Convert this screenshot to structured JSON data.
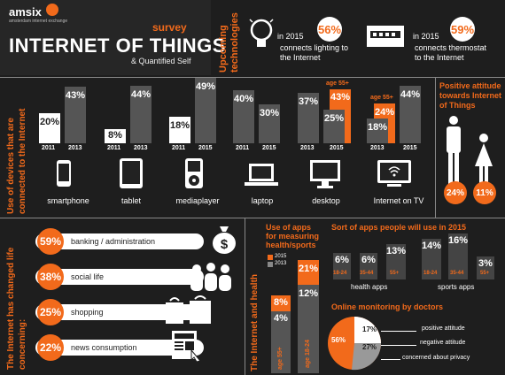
{
  "header": {
    "logo": "amsix",
    "logo_sub": "amsterdam internet exchange",
    "survey": "survey",
    "title": "INTERNET OF THINGS",
    "subtitle": "& Quantified Self"
  },
  "upcoming": {
    "label": "Upcoming technologies",
    "items": [
      {
        "year": "in 2015",
        "pct": "56%",
        "text": "connects lighting to the Internet",
        "icon": "lightbulb-icon"
      },
      {
        "year": "in 2015",
        "pct": "59%",
        "text": "connects thermostat to the Internet",
        "icon": "thermostat-icon"
      }
    ]
  },
  "devices": {
    "label": "Use of devices that are connected to the Internet",
    "age_note": "age 55+",
    "items": [
      {
        "name": "smartphone",
        "y2011": "20%",
        "y2013": "43%"
      },
      {
        "name": "tablet",
        "y2011": "8%",
        "y2013": "44%"
      },
      {
        "name": "mediaplayer",
        "y2011": "18%",
        "y2015": "49%"
      },
      {
        "name": "laptop",
        "y2011": "40%",
        "y2015": "30%"
      },
      {
        "name": "desktop",
        "y2013": "37%",
        "y2015": "25%",
        "y2015_55": "43%"
      },
      {
        "name": "Internet on TV",
        "y2013": "18%",
        "y2013_55": "24%",
        "y2015": "44%"
      }
    ],
    "years": {
      "a": "2011",
      "b": "2013",
      "c": "2015"
    }
  },
  "attitude": {
    "label": "Positive attitude towards Internet of Things",
    "male": "24%",
    "female": "11%"
  },
  "concerns": {
    "label": "The Internet has changed life concerning:",
    "items": [
      {
        "pct": "59%",
        "text": "banking / administration",
        "icon": "money-bag-icon"
      },
      {
        "pct": "38%",
        "text": "social life",
        "icon": "people-icon"
      },
      {
        "pct": "25%",
        "text": "shopping",
        "icon": "shopping-bag-icon"
      },
      {
        "pct": "22%",
        "text": "news consumption",
        "icon": "newspaper-icon"
      }
    ]
  },
  "health": {
    "label": "The Internet and health",
    "apps_title": "Use of apps for measuring health/sports",
    "legend_2015": "2015",
    "legend_2013": "2013",
    "bars": [
      {
        "age": "age 55+",
        "v2015": "8%",
        "v2013": "4%"
      },
      {
        "age": "age 18-24",
        "v2015": "21%",
        "v2013": "12%"
      }
    ],
    "sort_title": "Sort of apps people will use in 2015",
    "health_apps": {
      "label": "health apps",
      "values": [
        "6%",
        "6%",
        "13%"
      ],
      "ages": [
        "18-24",
        "35-44",
        "55+"
      ]
    },
    "sports_apps": {
      "label": "sports apps",
      "values": [
        "14%",
        "16%",
        "3%"
      ],
      "ages": [
        "18-24",
        "35-44",
        "55+"
      ]
    },
    "monitor_title": "Online monitoring by doctors",
    "monitor": {
      "positive": "17%",
      "negative": "27%",
      "concerned": "56%"
    },
    "monitor_labels": {
      "positive": "positive attitude",
      "negative": "negative attitude",
      "concerned": "concerned about privacy"
    }
  }
}
